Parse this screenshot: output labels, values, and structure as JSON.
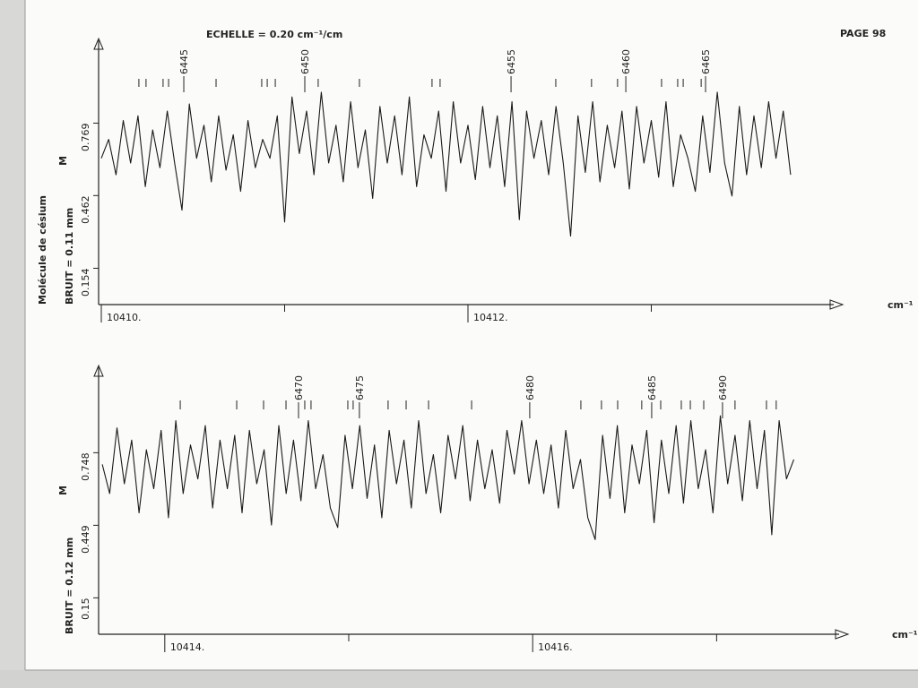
{
  "header": {
    "scale": "ECHELLE = 0.20 cm⁻¹/cm",
    "page": "PAGE 98",
    "molecule": "Molécule de césium"
  },
  "chart_data": [
    {
      "type": "line",
      "y_label": "BRUIT = 0.11 mm",
      "marker_label": "M",
      "x_unit": "cm⁻¹",
      "xlim": [
        10410,
        10414
      ],
      "ylim": [
        0,
        1.12
      ],
      "xticks": [
        {
          "value": 10410,
          "label": "10410."
        },
        {
          "value": 10412,
          "label": "10412."
        }
      ],
      "xminor": [
        10411,
        10413
      ],
      "yticks": [
        0.769,
        0.462,
        0.154
      ],
      "line_ids": [
        {
          "value": 10410.45,
          "label": "6445"
        },
        {
          "value": 10411.11,
          "label": "6450"
        },
        {
          "value": 10412.235,
          "label": "6455"
        },
        {
          "value": 10412.861,
          "label": "6460"
        },
        {
          "value": 10413.296,
          "label": "6465"
        }
      ],
      "line_marks": [
        10410.205,
        10410.244,
        10410.337,
        10410.367,
        10410.626,
        10410.875,
        10410.905,
        10410.949,
        10411.183,
        10411.408,
        10411.804,
        10411.848,
        10412.479,
        10412.674,
        10412.816,
        10413.056,
        10413.144,
        10413.174,
        10413.272
      ],
      "x": [
        10410,
        10410.04,
        10410.08,
        10410.12,
        10410.16,
        10410.2,
        10410.24,
        10410.28,
        10410.32,
        10410.36,
        10410.4,
        10410.44,
        10410.48,
        10410.52,
        10410.56,
        10410.6,
        10410.64,
        10410.68,
        10410.72,
        10410.76,
        10410.8,
        10410.84,
        10410.88,
        10410.92,
        10410.96,
        10411,
        10411.04,
        10411.08,
        10411.12,
        10411.16,
        10411.2,
        10411.24,
        10411.28,
        10411.32,
        10411.36,
        10411.4,
        10411.44,
        10411.48,
        10411.52,
        10411.56,
        10411.6,
        10411.64,
        10411.68,
        10411.72,
        10411.76,
        10411.8,
        10411.84,
        10411.88,
        10411.92,
        10411.96,
        10412,
        10412.04,
        10412.08,
        10412.12,
        10412.16,
        10412.2,
        10412.24,
        10412.28,
        10412.32,
        10412.36,
        10412.4,
        10412.44,
        10412.48,
        10412.52,
        10412.56,
        10412.6,
        10412.64,
        10412.68,
        10412.72,
        10412.76,
        10412.8,
        10412.84,
        10412.88,
        10412.92,
        10412.96,
        10413,
        10413.04,
        10413.08,
        10413.12,
        10413.16,
        10413.2,
        10413.24,
        10413.28,
        10413.32,
        10413.36,
        10413.4,
        10413.44,
        10413.48,
        10413.52,
        10413.56,
        10413.6,
        10413.64,
        10413.68,
        10413.72,
        10413.76
      ],
      "series": [
        {
          "color": "#1a1a1a",
          "values": [
            0.62,
            0.7,
            0.55,
            0.78,
            0.6,
            0.8,
            0.5,
            0.74,
            0.58,
            0.82,
            0.6,
            0.4,
            0.85,
            0.62,
            0.76,
            0.52,
            0.8,
            0.57,
            0.72,
            0.48,
            0.78,
            0.58,
            0.7,
            0.62,
            0.8,
            0.35,
            0.88,
            0.64,
            0.82,
            0.55,
            0.9,
            0.6,
            0.76,
            0.52,
            0.86,
            0.58,
            0.74,
            0.45,
            0.84,
            0.6,
            0.8,
            0.55,
            0.88,
            0.5,
            0.72,
            0.62,
            0.82,
            0.48,
            0.86,
            0.6,
            0.76,
            0.53,
            0.84,
            0.58,
            0.8,
            0.5,
            0.86,
            0.36,
            0.82,
            0.62,
            0.78,
            0.55,
            0.84,
            0.6,
            0.29,
            0.8,
            0.56,
            0.86,
            0.52,
            0.76,
            0.58,
            0.82,
            0.49,
            0.84,
            0.6,
            0.78,
            0.54,
            0.86,
            0.5,
            0.72,
            0.62,
            0.48,
            0.8,
            0.56,
            0.9,
            0.6,
            0.46,
            0.84,
            0.55,
            0.8,
            0.58,
            0.86,
            0.62,
            0.82,
            0.55
          ]
        }
      ]
    },
    {
      "type": "line",
      "y_label": "BRUIT = 0.12 mm",
      "marker_label": "M",
      "x_unit": "cm⁻¹",
      "xlim": [
        10413.65,
        10417.7
      ],
      "ylim": [
        0,
        1.1
      ],
      "xticks": [
        {
          "value": 10414,
          "label": "10414."
        },
        {
          "value": 10416,
          "label": "10416."
        }
      ],
      "xminor": [
        10415,
        10417
      ],
      "yticks": [
        0.748,
        0.449,
        0.15
      ],
      "line_ids": [
        {
          "value": 10414.727,
          "label": "6470"
        },
        {
          "value": 10415.058,
          "label": "6475"
        },
        {
          "value": 10415.984,
          "label": "6480"
        },
        {
          "value": 10416.647,
          "label": "6485"
        },
        {
          "value": 10417.032,
          "label": "6490"
        }
      ],
      "line_marks": [
        10414.084,
        10414.391,
        10414.537,
        10414.659,
        10414.761,
        10414.795,
        10414.995,
        10415.024,
        10415.214,
        10415.312,
        10415.434,
        10415.668,
        10416.262,
        10416.374,
        10416.462,
        10416.593,
        10416.696,
        10416.808,
        10416.857,
        10416.93,
        10417.1,
        10417.271,
        10417.324
      ],
      "x": [
        10413.66,
        10413.7,
        10413.74,
        10413.78,
        10413.82,
        10413.86,
        10413.9,
        10413.94,
        10413.98,
        10414.02,
        10414.06,
        10414.1,
        10414.14,
        10414.18,
        10414.22,
        10414.26,
        10414.3,
        10414.34,
        10414.38,
        10414.42,
        10414.46,
        10414.5,
        10414.54,
        10414.58,
        10414.62,
        10414.66,
        10414.7,
        10414.74,
        10414.78,
        10414.82,
        10414.86,
        10414.9,
        10414.94,
        10414.98,
        10415.02,
        10415.06,
        10415.1,
        10415.14,
        10415.18,
        10415.22,
        10415.26,
        10415.3,
        10415.34,
        10415.38,
        10415.42,
        10415.46,
        10415.5,
        10415.54,
        10415.58,
        10415.62,
        10415.66,
        10415.7,
        10415.74,
        10415.78,
        10415.82,
        10415.86,
        10415.9,
        10415.94,
        10415.98,
        10416.02,
        10416.06,
        10416.1,
        10416.14,
        10416.18,
        10416.22,
        10416.26,
        10416.3,
        10416.34,
        10416.38,
        10416.42,
        10416.46,
        10416.5,
        10416.54,
        10416.58,
        10416.62,
        10416.66,
        10416.7,
        10416.74,
        10416.78,
        10416.82,
        10416.86,
        10416.9,
        10416.94,
        10416.98,
        10417.02,
        10417.06,
        10417.1,
        10417.14,
        10417.18,
        10417.22,
        10417.26,
        10417.3,
        10417.34,
        10417.38,
        10417.42
      ],
      "series": [
        {
          "color": "#1a1a1a",
          "values": [
            0.7,
            0.58,
            0.85,
            0.62,
            0.8,
            0.5,
            0.76,
            0.6,
            0.84,
            0.48,
            0.88,
            0.58,
            0.78,
            0.64,
            0.86,
            0.52,
            0.8,
            0.6,
            0.82,
            0.5,
            0.84,
            0.62,
            0.76,
            0.45,
            0.86,
            0.58,
            0.8,
            0.55,
            0.88,
            0.6,
            0.74,
            0.52,
            0.44,
            0.82,
            0.6,
            0.86,
            0.56,
            0.78,
            0.48,
            0.84,
            0.62,
            0.8,
            0.52,
            0.88,
            0.58,
            0.74,
            0.5,
            0.82,
            0.64,
            0.86,
            0.55,
            0.8,
            0.6,
            0.76,
            0.54,
            0.84,
            0.66,
            0.88,
            0.62,
            0.8,
            0.58,
            0.78,
            0.52,
            0.84,
            0.6,
            0.72,
            0.48,
            0.39,
            0.82,
            0.56,
            0.86,
            0.5,
            0.78,
            0.62,
            0.84,
            0.46,
            0.8,
            0.58,
            0.86,
            0.54,
            0.88,
            0.6,
            0.76,
            0.5,
            0.9,
            0.62,
            0.82,
            0.55,
            0.88,
            0.6,
            0.84,
            0.41,
            0.88,
            0.64,
            0.72
          ]
        }
      ]
    }
  ]
}
